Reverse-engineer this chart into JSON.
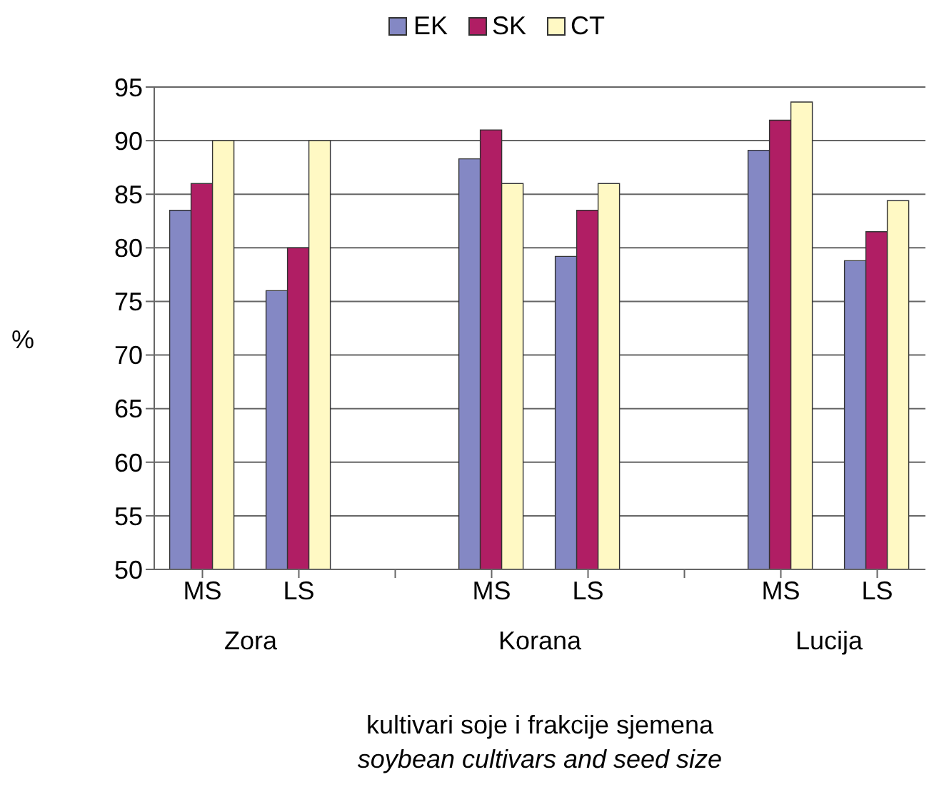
{
  "chart_data": {
    "type": "bar",
    "categories": [
      "MS",
      "LS",
      null,
      "MS",
      "LS",
      null,
      "MS",
      "LS"
    ],
    "series": [
      {
        "name": "EK",
        "color": "#8488c4",
        "values": [
          83.5,
          76,
          null,
          88.3,
          79.2,
          null,
          89.1,
          78.8
        ]
      },
      {
        "name": "SK",
        "color": "#b01e64",
        "values": [
          86,
          80,
          null,
          91,
          83.5,
          null,
          91.9,
          81.5
        ]
      },
      {
        "name": "CT",
        "color": "#fff9c4",
        "values": [
          90,
          90,
          null,
          86,
          86,
          null,
          93.6,
          84.4
        ]
      }
    ],
    "ylim": [
      50,
      95
    ],
    "yticks": [
      50,
      55,
      60,
      65,
      70,
      75,
      80,
      85,
      90,
      95
    ],
    "ylabel": "%",
    "xlabel": "kultivari soje i frakcije sjemena\nsoybean cultivars and seed size",
    "annotations": [
      "Zora",
      "Korana",
      "Lucija"
    ],
    "grid": "y",
    "legend": "top"
  }
}
